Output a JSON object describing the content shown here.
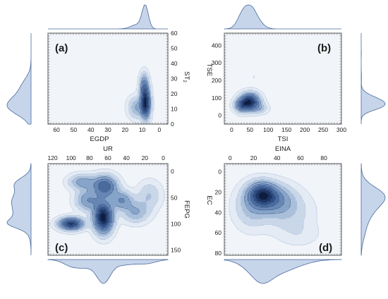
{
  "chart_data": [
    {
      "id": "a",
      "type": "kde-contour",
      "letter": "(a)",
      "xlabel": "EGDP",
      "ylabel_main": "ST",
      "ylabel_sub": "2",
      "x_reversed": true,
      "xlim": [
        65,
        -5
      ],
      "ylim": [
        0,
        60
      ],
      "xticks": [
        60,
        50,
        40,
        30,
        20,
        10,
        0
      ],
      "yticks": [
        0,
        10,
        20,
        30,
        40,
        50,
        60
      ],
      "xaxis_pos": "bottom",
      "yaxis_pos": "right",
      "x_marginal": "top",
      "y_marginal": "left",
      "clusters": [
        {
          "x": 8,
          "y": 14,
          "sx": 1.8,
          "sy": 7.0,
          "w": 1.0
        },
        {
          "x": 9,
          "y": 26,
          "sx": 1.7,
          "sy": 5.5,
          "w": 0.45
        },
        {
          "x": 13,
          "y": 11,
          "sx": 3.5,
          "sy": 5.0,
          "w": 0.35
        }
      ]
    },
    {
      "id": "b",
      "type": "kde-contour",
      "letter": "(b)",
      "xlabel": "TSI",
      "ylabel_main": "TSE",
      "ylabel_sub": "",
      "x_reversed": false,
      "xlim": [
        -20,
        300
      ],
      "ylim": [
        -50,
        470
      ],
      "xticks": [
        0,
        50,
        100,
        150,
        200,
        250,
        300
      ],
      "yticks": [
        0,
        100,
        200,
        300,
        400
      ],
      "xaxis_pos": "bottom",
      "yaxis_pos": "left",
      "x_marginal": "top",
      "y_marginal": "right",
      "clusters": [
        {
          "x": 50,
          "y": 80,
          "sx": 18,
          "sy": 32,
          "w": 1.0
        },
        {
          "x": 28,
          "y": 55,
          "sx": 14,
          "sy": 26,
          "w": 0.55
        },
        {
          "x": 75,
          "y": 40,
          "sx": 16,
          "sy": 20,
          "w": 0.25
        },
        {
          "x": 60,
          "y": 220,
          "sx": 6,
          "sy": 25,
          "w": 0.05
        },
        {
          "x": 55,
          "y": 350,
          "sx": 6,
          "sy": 12,
          "w": 0.03
        }
      ]
    },
    {
      "id": "c",
      "type": "kde-contour",
      "letter": "(c)",
      "xlabel": "UR",
      "ylabel_main": "FEPG",
      "ylabel_sub": "",
      "x_reversed": true,
      "y_reversed": true,
      "xlim": [
        125,
        -5
      ],
      "ylim": [
        160,
        -15
      ],
      "xticks": [
        120,
        100,
        80,
        60,
        40,
        20,
        0
      ],
      "yticks": [
        0,
        50,
        100,
        150
      ],
      "xaxis_pos": "top",
      "yaxis_pos": "right",
      "x_marginal": "bottom",
      "y_marginal": "left",
      "clusters": [
        {
          "x": 65,
          "y": 88,
          "sx": 7,
          "sy": 20,
          "w": 1.0
        },
        {
          "x": 100,
          "y": 100,
          "sx": 9,
          "sy": 8,
          "w": 0.85
        },
        {
          "x": 63,
          "y": 28,
          "sx": 9,
          "sy": 14,
          "w": 0.65
        },
        {
          "x": 45,
          "y": 55,
          "sx": 8,
          "sy": 12,
          "w": 0.4
        },
        {
          "x": 30,
          "y": 78,
          "sx": 10,
          "sy": 14,
          "w": 0.3
        },
        {
          "x": 82,
          "y": 55,
          "sx": 9,
          "sy": 14,
          "w": 0.4
        },
        {
          "x": 88,
          "y": 20,
          "sx": 10,
          "sy": 10,
          "w": 0.35
        },
        {
          "x": 15,
          "y": 45,
          "sx": 9,
          "sy": 18,
          "w": 0.2
        }
      ]
    },
    {
      "id": "d",
      "type": "kde-contour",
      "letter": "(d)",
      "xlabel": "EINA",
      "ylabel_main": "EC",
      "ylabel_sub": "",
      "x_reversed": false,
      "y_reversed": true,
      "xlim": [
        -5,
        95
      ],
      "ylim": [
        82,
        -8
      ],
      "xticks": [
        0,
        20,
        40,
        60,
        80
      ],
      "yticks": [
        0,
        20,
        40,
        60,
        80
      ],
      "xaxis_pos": "top",
      "yaxis_pos": "left",
      "x_marginal": "bottom",
      "y_marginal": "right",
      "clusters": [
        {
          "x": 27,
          "y": 22,
          "sx": 8,
          "sy": 8,
          "w": 1.0
        },
        {
          "x": 38,
          "y": 27,
          "sx": 11,
          "sy": 10,
          "w": 0.55
        },
        {
          "x": 18,
          "y": 35,
          "sx": 10,
          "sy": 14,
          "w": 0.35
        },
        {
          "x": 50,
          "y": 40,
          "sx": 14,
          "sy": 14,
          "w": 0.25
        },
        {
          "x": 60,
          "y": 62,
          "sx": 12,
          "sy": 8,
          "w": 0.1
        }
      ]
    }
  ]
}
